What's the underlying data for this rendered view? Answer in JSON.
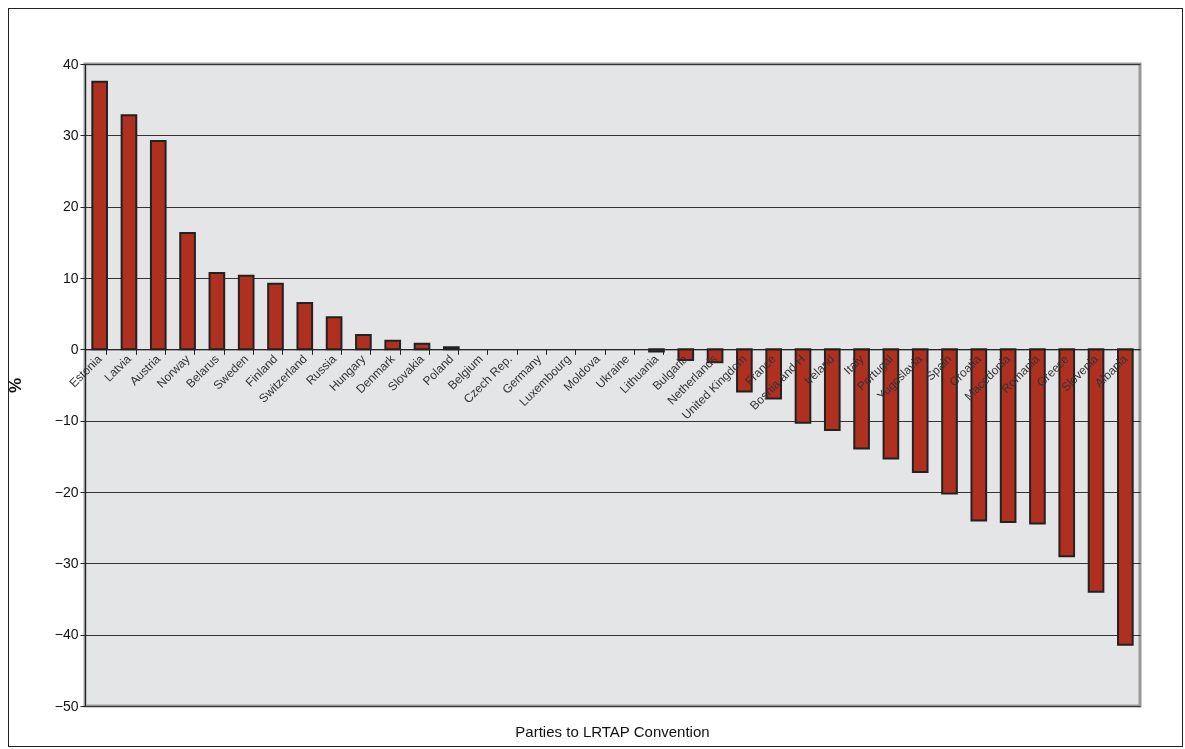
{
  "chart_data": {
    "type": "bar",
    "xlabel": "Parties to LRTAP Convention",
    "ylabel": "%",
    "categories": [
      "Estonia",
      "Latvia",
      "Austria",
      "Norway",
      "Belarus",
      "Sweden",
      "Finland",
      "Switzerland",
      "Russia",
      "Hungary",
      "Denmark",
      "Slovakia",
      "Poland",
      "Belgium",
      "Czech Rep.",
      "Germany",
      "Luxembourg",
      "Moldova",
      "Ukraine",
      "Lithuania",
      "Bulgaria",
      "Netherlands",
      "United Kingdom",
      "France",
      "Bosnia and H",
      "Ireland",
      "Italy",
      "Portugal",
      "Yugoslavia",
      "Spain",
      "Croatia",
      "Macedonia",
      "Romania",
      "Greece",
      "Slovenia",
      "Albania"
    ],
    "values": [
      37.5,
      32.8,
      29.2,
      16.3,
      10.7,
      10.3,
      9.2,
      6.5,
      4.5,
      2.0,
      1.2,
      0.8,
      0.3,
      0,
      0,
      0,
      0,
      0,
      0,
      -0.3,
      -1.5,
      -1.8,
      -5.9,
      -6.9,
      -10.3,
      -11.3,
      -13.9,
      -15.3,
      -17.2,
      -20.2,
      -24.0,
      -24.2,
      -24.4,
      -29.0,
      -34.0,
      -41.4
    ],
    "color": "#b03020",
    "ylim": [
      -50,
      40
    ],
    "yticks": [
      -50,
      -40,
      -30,
      -20,
      -10,
      0,
      10,
      20,
      30,
      40
    ],
    "grid": "y"
  }
}
